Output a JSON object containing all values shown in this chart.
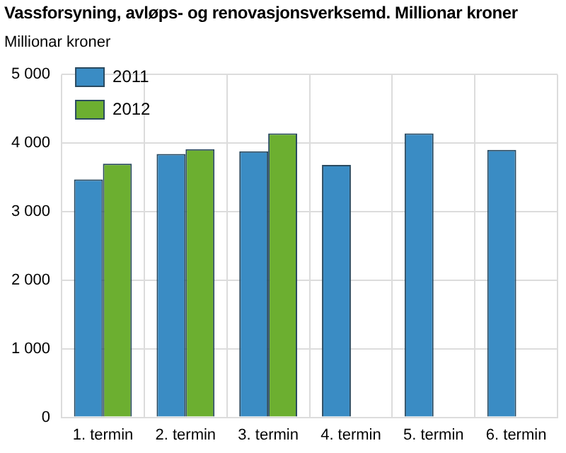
{
  "chart_data": {
    "type": "bar",
    "title": "Vassforsyning, avløps- og renovasjonsverksemd. Millionar kroner",
    "ylabel": "Millionar kroner",
    "categories": [
      "1. termin",
      "2. termin",
      "3. termin",
      "4. termin",
      "5. termin",
      "6. termin"
    ],
    "series": [
      {
        "name": "2011",
        "color": "#3a8cc4",
        "values": [
          3470,
          3840,
          3880,
          3680,
          4140,
          3900
        ]
      },
      {
        "name": "2012",
        "color": "#6caf30",
        "values": [
          3700,
          3910,
          4140,
          null,
          null,
          null
        ]
      }
    ],
    "ylim": [
      0,
      5000
    ],
    "yticks": [
      0,
      {
        "value": 1000,
        "label": "1 000"
      },
      {
        "value": 2000,
        "label": "2 000"
      },
      {
        "value": 3000,
        "label": "3 000"
      },
      {
        "value": 4000,
        "label": "4 000"
      },
      {
        "value": 5000,
        "label": "5 000"
      }
    ],
    "grid": true,
    "legend": "top left"
  }
}
